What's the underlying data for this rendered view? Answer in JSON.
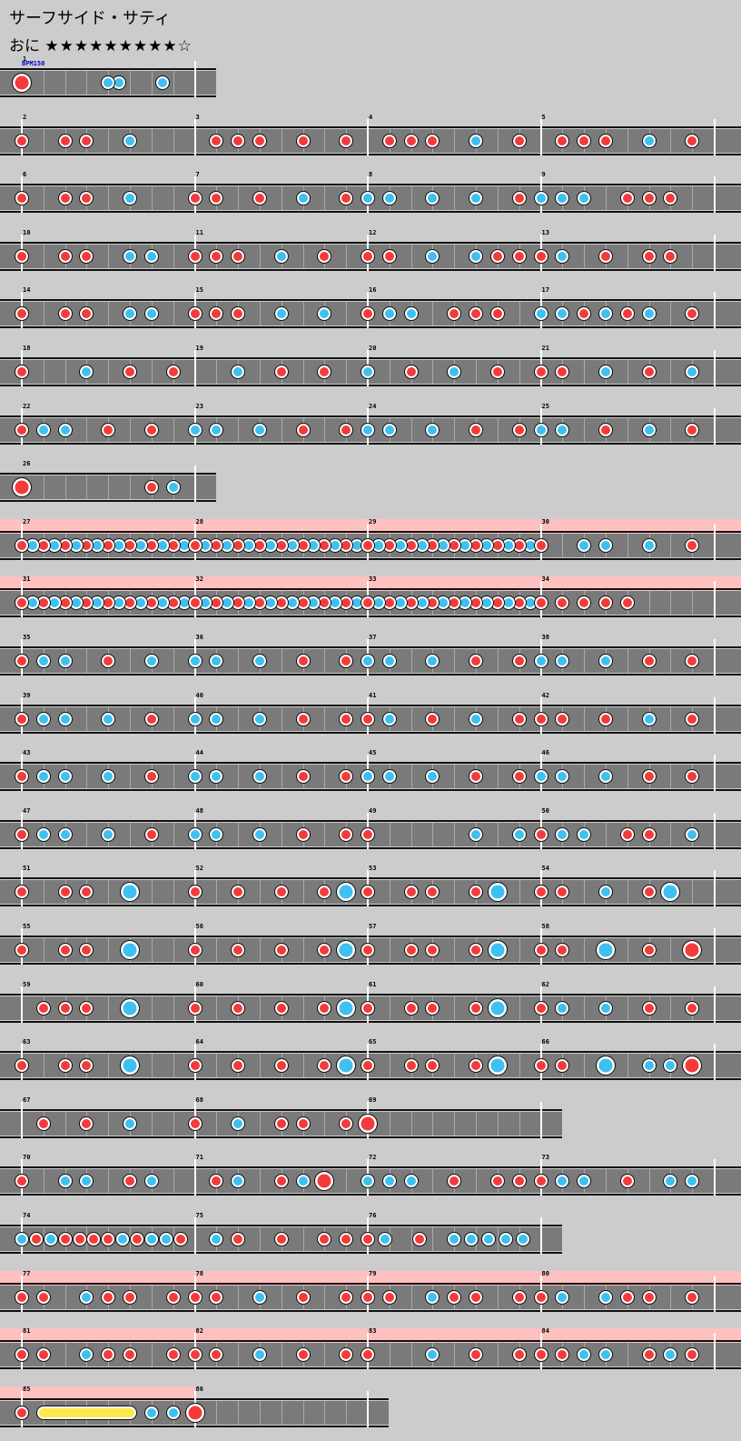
{
  "song": {
    "title": "サーフサイド・サティ",
    "difficulty": "おに",
    "stars": "★★★★★★★★★☆",
    "bpm_label": "BPM150"
  },
  "legend": {
    "don": "don-note",
    "ka": "ka-note",
    "roll": "drumroll"
  },
  "rows": [
    {
      "measures": [
        {
          "n": "1",
          "notes": "d0000000kk000k00"
        }
      ],
      "firstBig": true,
      "lastOpen": false
    },
    {
      "measures": [
        {
          "n": "2",
          "notes": "d0dd0k00"
        },
        {
          "n": "3",
          "notes": "0ddd0d0d"
        },
        {
          "n": "4",
          "notes": "0ddd0k0d"
        },
        {
          "n": "5",
          "notes": "0ddd0k0d"
        }
      ]
    },
    {
      "measures": [
        {
          "n": "6",
          "notes": "d0dd0k00"
        },
        {
          "n": "7",
          "notes": "dd0d0k0d"
        },
        {
          "n": "8",
          "notes": "kk0k0k0d"
        },
        {
          "n": "9",
          "notes": "kkk0ddd0"
        }
      ]
    },
    {
      "measures": [
        {
          "n": "10",
          "notes": "d0dd0kk0"
        },
        {
          "n": "11",
          "notes": "ddd0k0d0"
        },
        {
          "n": "12",
          "notes": "dd0k0kdd"
        },
        {
          "n": "13",
          "notes": "dk0d0dd0"
        }
      ]
    },
    {
      "measures": [
        {
          "n": "14",
          "notes": "d0dd0kk0"
        },
        {
          "n": "15",
          "notes": "ddd0k0k0"
        },
        {
          "n": "16",
          "notes": "dkk0ddd0"
        },
        {
          "n": "17",
          "notes": "kkdkdk0d"
        }
      ]
    },
    {
      "measures": [
        {
          "n": "18",
          "notes": "d00k0d0d"
        },
        {
          "n": "19",
          "notes": "00k0d0d0"
        },
        {
          "n": "20",
          "notes": "k0d0k0d0"
        },
        {
          "n": "21",
          "notes": "dd0k0d0k"
        }
      ]
    },
    {
      "measures": [
        {
          "n": "22",
          "notes": "dkk0d0d0"
        },
        {
          "n": "23",
          "notes": "kk0k0d0d"
        },
        {
          "n": "24",
          "notes": "kk0k0d0d"
        },
        {
          "n": "25",
          "notes": "kk0d0k0d"
        }
      ]
    },
    {
      "measures": [
        {
          "n": "26",
          "notes": "d00000dk"
        }
      ],
      "firstBig": true
    },
    {
      "measures": [
        {
          "n": "27",
          "notes": "dkdkdkdkdkdkdkdk"
        },
        {
          "n": "28",
          "notes": "dkdkdkdkdkdkdkdk"
        },
        {
          "n": "29",
          "notes": "dkdkdkdkdkdkdkdk"
        },
        {
          "n": "30",
          "notes": "d0kk0k0d"
        }
      ],
      "gogo": [
        0,
        4
      ]
    },
    {
      "measures": [
        {
          "n": "31",
          "notes": "dkdkdkdkdkdkdkdk"
        },
        {
          "n": "32",
          "notes": "dkdkdkdkdkdkdkdk"
        },
        {
          "n": "33",
          "notes": "dkdkdkdkdkdkdkdk"
        },
        {
          "n": "34",
          "notes": "ddddd000"
        }
      ],
      "gogo": [
        0,
        4
      ]
    },
    {
      "measures": [
        {
          "n": "35",
          "notes": "dkk0d0k0"
        },
        {
          "n": "36",
          "notes": "kk0k0d0d"
        },
        {
          "n": "37",
          "notes": "kk0k0d0d"
        },
        {
          "n": "38",
          "notes": "kk0k0d0d"
        }
      ]
    },
    {
      "measures": [
        {
          "n": "39",
          "notes": "dkk0k0d0"
        },
        {
          "n": "40",
          "notes": "kk0k0d0d"
        },
        {
          "n": "41",
          "notes": "dk0d0k0d"
        },
        {
          "n": "42",
          "notes": "dd0d0k0d"
        }
      ]
    },
    {
      "measures": [
        {
          "n": "43",
          "notes": "dkk0k0d0"
        },
        {
          "n": "44",
          "notes": "kk0k0d0d"
        },
        {
          "n": "45",
          "notes": "kk0k0d0d"
        },
        {
          "n": "46",
          "notes": "kk0k0d0d"
        }
      ]
    },
    {
      "measures": [
        {
          "n": "47",
          "notes": "dkk0k0d0"
        },
        {
          "n": "48",
          "notes": "kk0k0d0d"
        },
        {
          "n": "49",
          "notes": "d0000k0k"
        },
        {
          "n": "50",
          "notes": "dkk0dd0k"
        }
      ]
    },
    {
      "measures": [
        {
          "n": "51",
          "notes": "d0dd0K00"
        },
        {
          "n": "52",
          "notes": "d0d0d0dK"
        },
        {
          "n": "53",
          "notes": "d0dd0dK0"
        },
        {
          "n": "54",
          "notes": "dd0k0dK0"
        }
      ]
    },
    {
      "measures": [
        {
          "n": "55",
          "notes": "d0dd0K00"
        },
        {
          "n": "56",
          "notes": "d0d0d0dK"
        },
        {
          "n": "57",
          "notes": "d0dd0dK0"
        },
        {
          "n": "58",
          "notes": "dd0K0d0D"
        }
      ]
    },
    {
      "measures": [
        {
          "n": "59",
          "notes": "0ddd0K00"
        },
        {
          "n": "60",
          "notes": "d0d0d0dK"
        },
        {
          "n": "61",
          "notes": "d0dd0dK0"
        },
        {
          "n": "62",
          "notes": "dk0k0d0d"
        }
      ]
    },
    {
      "measures": [
        {
          "n": "63",
          "notes": "d0dd0K00"
        },
        {
          "n": "64",
          "notes": "d0d0d0dK"
        },
        {
          "n": "65",
          "notes": "d0dd0dK0"
        },
        {
          "n": "66",
          "notes": "dd0K0kkD"
        }
      ]
    },
    {
      "measures": [
        {
          "n": "67",
          "notes": "0d0d0k00"
        },
        {
          "n": "68",
          "notes": "d0k0dd0d"
        },
        {
          "n": "69",
          "notes": "D0000000"
        }
      ],
      "lastOpen": true
    },
    {
      "measures": [
        {
          "n": "70",
          "notes": "d0kk0dk0"
        },
        {
          "n": "71",
          "notes": "0dk0dkD0"
        },
        {
          "n": "72",
          "notes": "kkk0d0dd"
        },
        {
          "n": "73",
          "notes": "dkk0d0kk"
        }
      ]
    },
    {
      "measures": [
        {
          "n": "74",
          "notes": "kdkddddkdkkd"
        },
        {
          "n": "75",
          "notes": "0kd0d0dd"
        },
        {
          "n": "76",
          "notes": "dk0d0kkkkk"
        }
      ],
      "lastOpen": true
    },
    {
      "measures": [
        {
          "n": "77",
          "notes": "dd0kdd0d"
        },
        {
          "n": "78",
          "notes": "dd0k0d0d"
        },
        {
          "n": "79",
          "notes": "dd0kdd0d"
        },
        {
          "n": "80",
          "notes": "dk0kdd0d"
        }
      ],
      "gogo": [
        0,
        4
      ]
    },
    {
      "measures": [
        {
          "n": "81",
          "notes": "dd0kdd0d"
        },
        {
          "n": "82",
          "notes": "dd0k0d0d"
        },
        {
          "n": "83",
          "notes": "d00k0d0d"
        },
        {
          "n": "84",
          "notes": "ddkk0dkd"
        }
      ],
      "gogo": [
        0,
        4
      ]
    },
    {
      "measures": [
        {
          "n": "85",
          "notes": "dRRRRRkk"
        },
        {
          "n": "86",
          "notes": "D0000000"
        }
      ],
      "gogo": [
        0,
        1
      ],
      "lastOpen": true
    }
  ]
}
